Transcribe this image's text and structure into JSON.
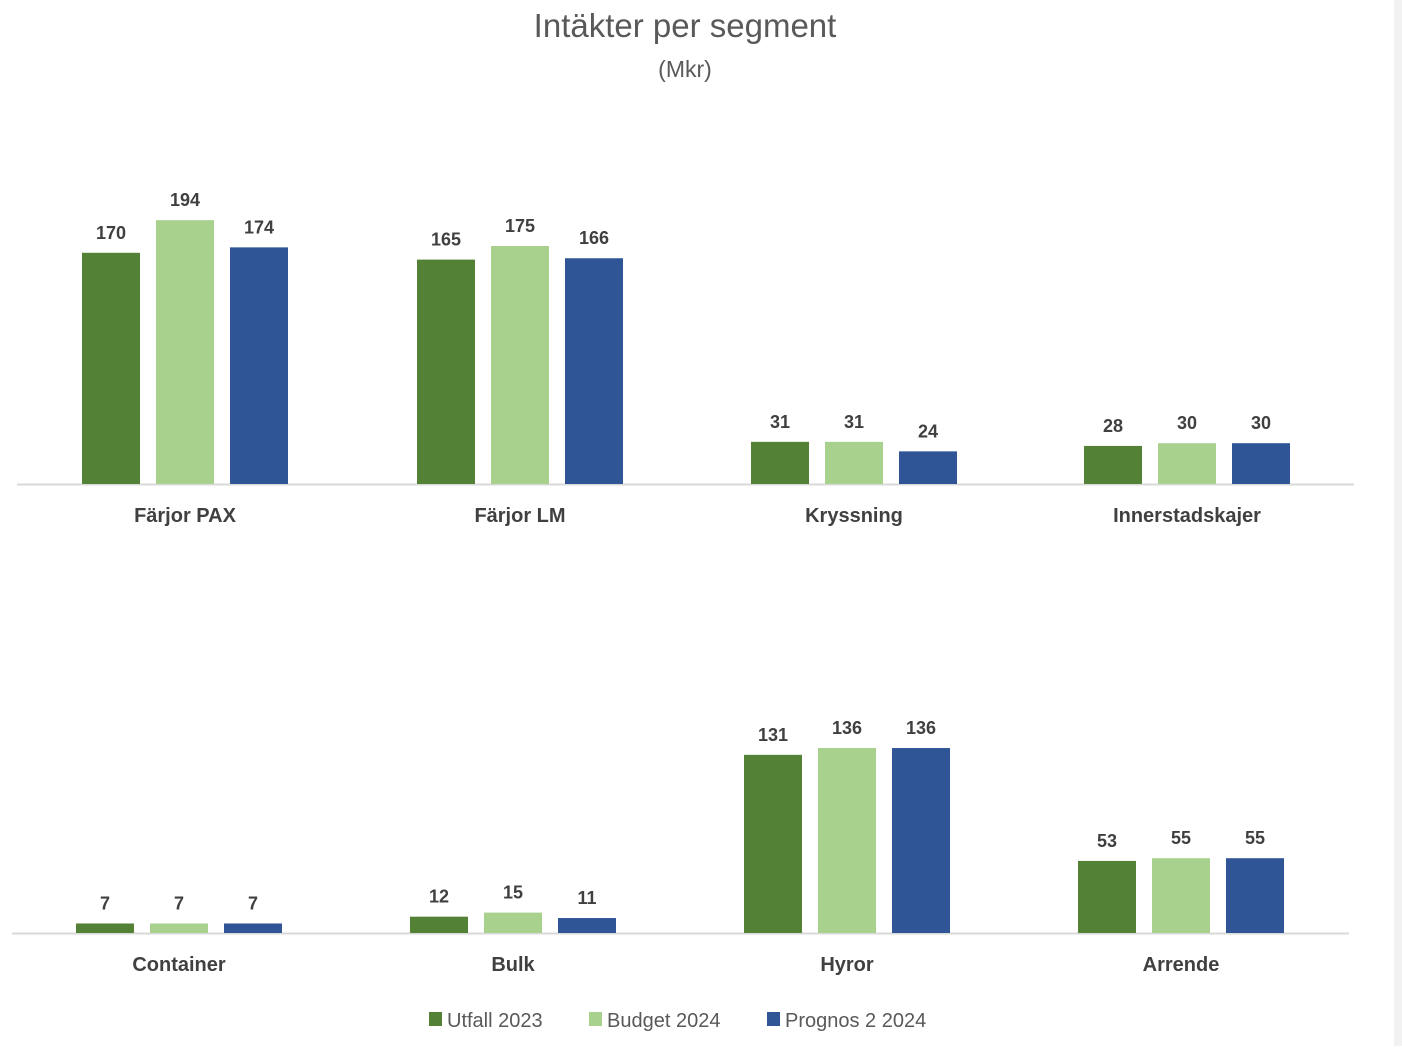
{
  "chart_data": {
    "type": "bar",
    "title": "Intäkter per segment",
    "subtitle": "(Mkr)",
    "series": [
      {
        "name": "Utfall 2023",
        "color": "#538135"
      },
      {
        "name": "Budget 2024",
        "color": "#a9d18e"
      },
      {
        "name": "Prognos 2 2024",
        "color": "#2f5597"
      }
    ],
    "panels": [
      {
        "categories": [
          "Färjor PAX",
          "Färjor LM",
          "Kryssning",
          "Innerstadskajer"
        ],
        "values": [
          [
            170,
            194,
            174
          ],
          [
            165,
            175,
            166
          ],
          [
            31,
            31,
            24
          ],
          [
            28,
            30,
            30
          ]
        ]
      },
      {
        "categories": [
          "Container",
          "Bulk",
          "Hyror",
          "Arrende"
        ],
        "values": [
          [
            7,
            7,
            7
          ],
          [
            12,
            15,
            11
          ],
          [
            131,
            136,
            136
          ],
          [
            53,
            55,
            55
          ]
        ]
      }
    ]
  }
}
